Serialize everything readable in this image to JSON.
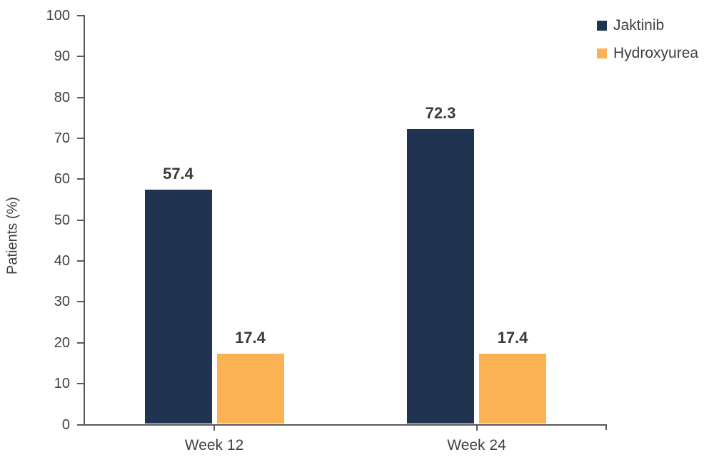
{
  "chart_data": {
    "type": "bar",
    "title": "",
    "categories": [
      "Week 12",
      "Week 24"
    ],
    "series": [
      {
        "name": "Jaktinib",
        "color": "#203350",
        "values": [
          57.4,
          72.3
        ]
      },
      {
        "name": "Hydroxyurea",
        "color": "#FBB254",
        "values": [
          17.4,
          17.4
        ]
      }
    ],
    "value_labels": [
      "57.4",
      "17.4",
      "72.3",
      "17.4"
    ],
    "xlabel": "",
    "ylabel": "Patients (%)",
    "ylim": [
      0,
      100
    ],
    "yticks": [
      0,
      10,
      20,
      30,
      40,
      50,
      60,
      70,
      80,
      90,
      100
    ],
    "grid": false,
    "legend_position": "top-right",
    "colors": {
      "axis": "#58595B",
      "tick_label": "#414141",
      "value_label": "#3A3A3A",
      "background": "#FFFFFF"
    }
  }
}
